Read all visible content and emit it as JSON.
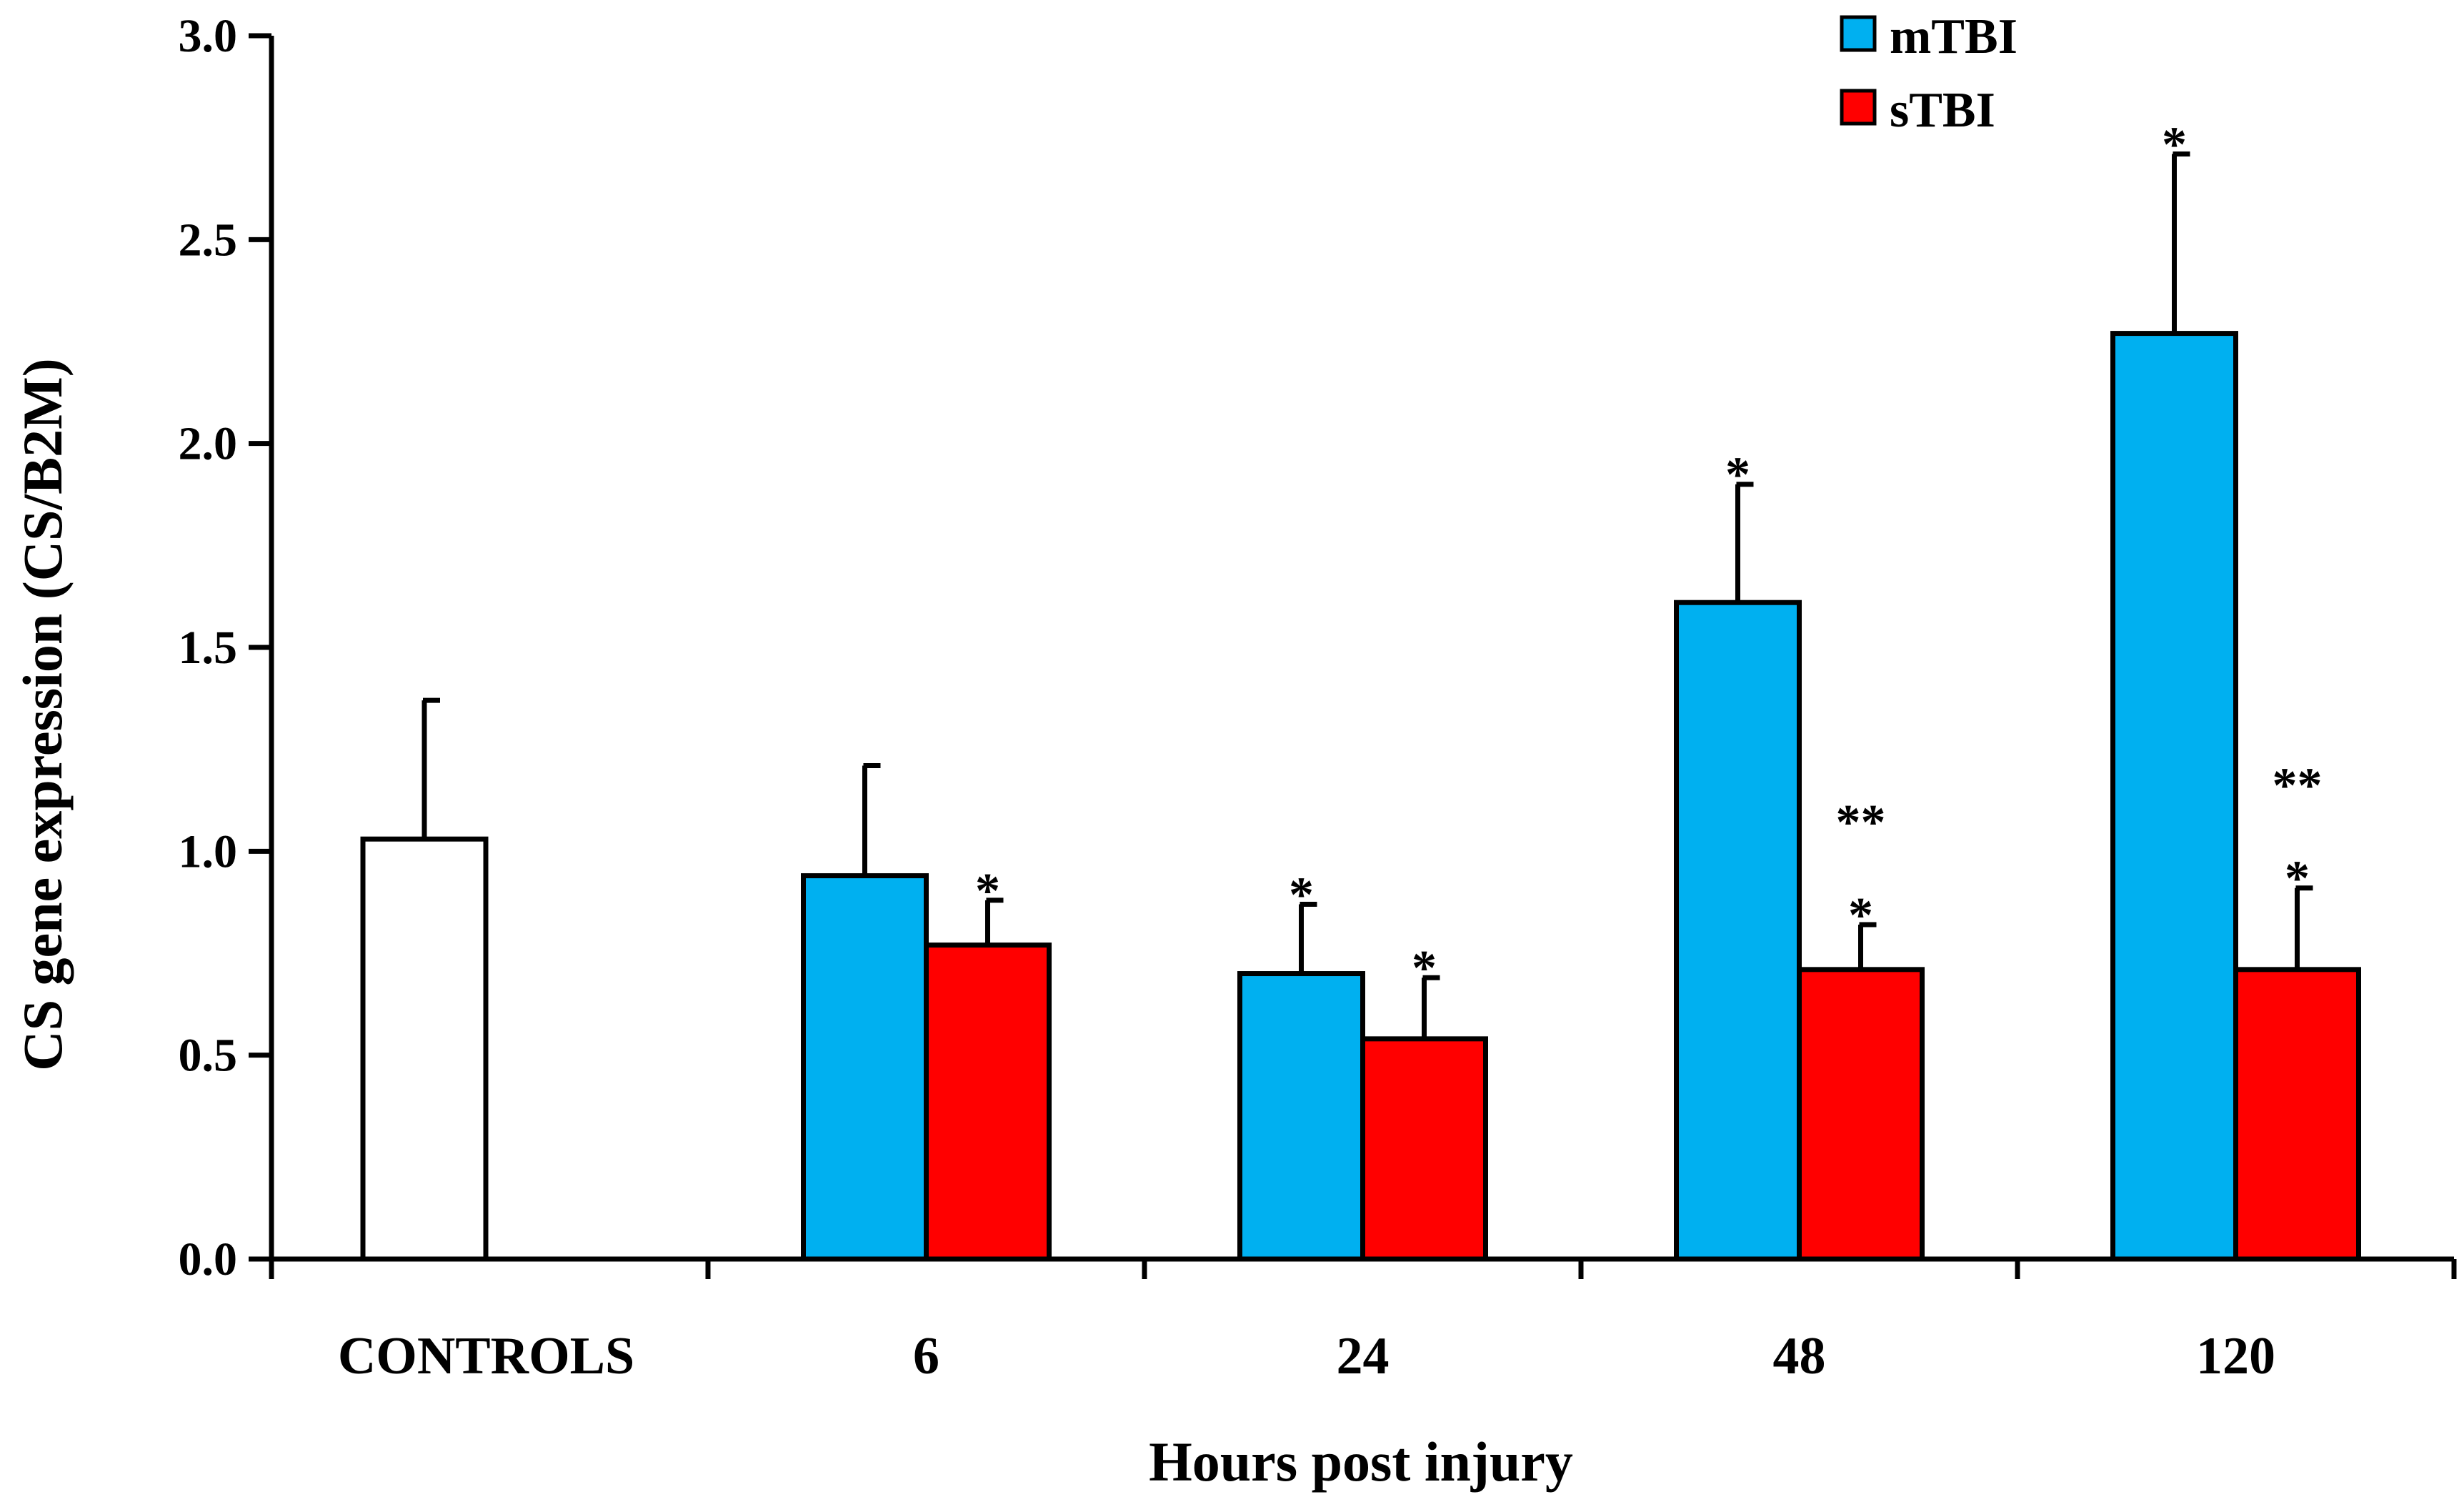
{
  "chart_data": {
    "type": "bar",
    "xlabel": "Hours post injury",
    "ylabel": "CS gene expression (CS/B2M)",
    "ylim": [
      0,
      3.0
    ],
    "yticks": [
      "0.0",
      "0.5",
      "1.0",
      "1.5",
      "2.0",
      "2.5",
      "3.0"
    ],
    "grid": false,
    "legend_position": "top-right",
    "categories": [
      "CONTROLS",
      "6",
      "24",
      "48",
      "120"
    ],
    "series": [
      {
        "name": "Controls",
        "color": "#ffffff",
        "show_in_legend": false,
        "values": [
          1.03,
          null,
          null,
          null,
          null
        ],
        "errors": [
          0.34,
          null,
          null,
          null,
          null
        ],
        "significance": [
          "",
          "",
          "",
          "",
          ""
        ]
      },
      {
        "name": "mTBI",
        "color": "#00b0f0",
        "show_in_legend": true,
        "values": [
          null,
          0.94,
          0.7,
          1.61,
          2.27
        ],
        "errors": [
          null,
          0.27,
          0.17,
          0.29,
          0.44
        ],
        "significance": [
          "",
          "",
          "*",
          "*",
          "*"
        ]
      },
      {
        "name": "sTBI",
        "color": "#ff0000",
        "show_in_legend": true,
        "values": [
          null,
          0.77,
          0.54,
          0.71,
          0.71
        ],
        "errors": [
          null,
          0.11,
          0.15,
          0.11,
          0.2
        ],
        "significance": [
          "",
          "*",
          "*",
          "**\n*",
          "**\n*"
        ]
      }
    ]
  }
}
